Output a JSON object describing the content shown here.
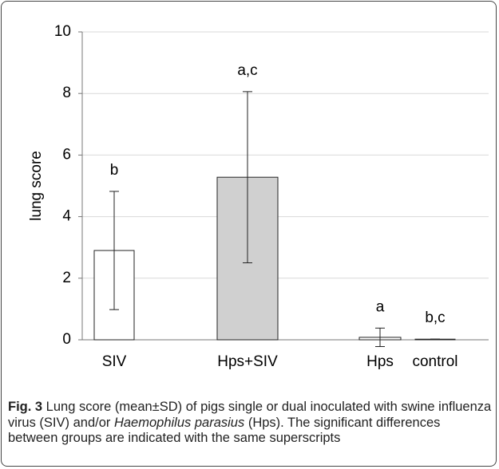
{
  "chart_data": {
    "type": "bar",
    "ylabel": "lung score",
    "categories": [
      "SIV",
      "Hps+SIV",
      "Hps",
      "control"
    ],
    "values": [
      2.9,
      5.28,
      0.08,
      0.02
    ],
    "errors": [
      1.92,
      2.78,
      0.3,
      0
    ],
    "annotations": [
      "b",
      "a,c",
      "a",
      "b,c"
    ],
    "colors": [
      "#ffffff",
      "#d0d0d0",
      "#ffffff",
      "#ffffff"
    ],
    "ylim": [
      0,
      10
    ],
    "yticks": [
      0,
      2,
      4,
      6,
      8,
      10
    ],
    "grid": true
  },
  "caption": {
    "label": "Fig. 3",
    "parts": [
      " Lung score (mean±SD) of pigs single or dual inoculated with swine influenza virus (SIV) and/or ",
      "Haemophilus parasius",
      " (Hps). The significant differences between groups are indicated with the same superscripts"
    ]
  }
}
